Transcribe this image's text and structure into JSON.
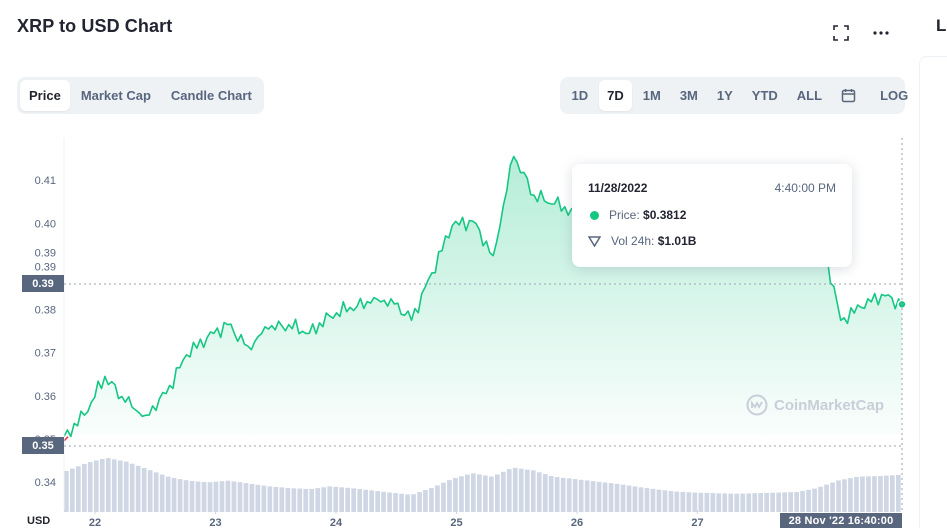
{
  "header": {
    "title": "XRP to USD Chart",
    "icons": [
      "fullscreen-icon",
      "more-icon"
    ],
    "side_letter": "L"
  },
  "chart_tabs": [
    {
      "label": "Price",
      "active": true
    },
    {
      "label": "Market Cap",
      "active": false
    },
    {
      "label": "Candle Chart",
      "active": false
    }
  ],
  "range_tabs": [
    {
      "label": "1D",
      "active": false
    },
    {
      "label": "7D",
      "active": true
    },
    {
      "label": "1M",
      "active": false
    },
    {
      "label": "3M",
      "active": false
    },
    {
      "label": "1Y",
      "active": false
    },
    {
      "label": "YTD",
      "active": false
    },
    {
      "label": "ALL",
      "active": false
    }
  ],
  "calendar_icon": "calendar-icon",
  "log_label": "LOG",
  "tooltip": {
    "date": "11/28/2022",
    "time": "4:40:00 PM",
    "price_label": "Price:",
    "price_value": "$0.3812",
    "volume_label": "Vol 24h:",
    "volume_value": "$1.01B"
  },
  "crosshair": {
    "price_tag_high": "0.39",
    "price_tag_low": "0.35",
    "time_tag": "28 Nov '22 16:40:00"
  },
  "currency_label": "USD",
  "watermark": "CoinMarketCap",
  "colors": {
    "up": "#16c784",
    "down": "#ea3943",
    "volume": "#cfd6e4",
    "text_secondary": "#58667e"
  },
  "chart_data": {
    "type": "area",
    "title": "XRP to USD Chart",
    "xlabel": "",
    "ylabel": "USD",
    "x_tick_labels": [
      "22",
      "23",
      "24",
      "25",
      "26",
      "27"
    ],
    "y_tick_labels": [
      "0.34",
      "0.35",
      "0.36",
      "0.37",
      "0.38",
      "0.39",
      "0.40",
      "0.41"
    ],
    "ylim": [
      0.3335,
      0.4198
    ],
    "grid": false,
    "series": [
      {
        "x": [
          "Nov 21 18:00",
          "Nov 22 00:00",
          "Nov 22 04:00",
          "Nov 22 08:00",
          "Nov 22 12:00",
          "Nov 22 16:00",
          "Nov 22 20:00",
          "Nov 23 00:00",
          "Nov 23 04:00",
          "Nov 23 08:00",
          "Nov 23 12:00",
          "Nov 23 16:00",
          "Nov 23 20:00",
          "Nov 24 00:00",
          "Nov 24 04:00",
          "Nov 24 08:00",
          "Nov 24 12:00",
          "Nov 24 16:00",
          "Nov 24 20:00",
          "Nov 25 00:00",
          "Nov 25 04:00",
          "Nov 25 08:00",
          "Nov 25 12:00",
          "Nov 25 16:00",
          "Nov 25 20:00",
          "Nov 26 00:00",
          "Nov 26 04:00",
          "Nov 26 08:00",
          "Nov 26 12:00",
          "Nov 26 16:00",
          "Nov 26 20:00",
          "Nov 27 00:00",
          "Nov 27 04:00",
          "Nov 27 08:00",
          "Nov 27 12:00",
          "Nov 27 16:00",
          "Nov 27 20:00",
          "Nov 28 00:00",
          "Nov 28 04:00",
          "Nov 28 08:00",
          "Nov 28 12:00",
          "Nov 28 16:40"
        ],
        "values": [
          0.3505,
          0.3555,
          0.3645,
          0.3585,
          0.3555,
          0.3605,
          0.3695,
          0.3735,
          0.3765,
          0.3715,
          0.3755,
          0.3765,
          0.3745,
          0.3785,
          0.3805,
          0.3815,
          0.3825,
          0.3775,
          0.3885,
          0.3995,
          0.4005,
          0.3925,
          0.4155,
          0.4065,
          0.4045,
          0.4025,
          0.4015,
          0.3985,
          0.4005,
          0.4025,
          0.3985,
          0.4025,
          0.3945,
          0.4045,
          0.4055,
          0.4035,
          0.4005,
          0.3985,
          0.3775,
          0.3805,
          0.3835,
          0.3812
        ]
      }
    ],
    "volume_relative": [
      0.72,
      0.86,
      0.95,
      0.88,
      0.75,
      0.62,
      0.55,
      0.52,
      0.55,
      0.5,
      0.45,
      0.42,
      0.4,
      0.45,
      0.42,
      0.38,
      0.34,
      0.3,
      0.42,
      0.58,
      0.68,
      0.62,
      0.78,
      0.73,
      0.62,
      0.58,
      0.54,
      0.5,
      0.45,
      0.4,
      0.36,
      0.34,
      0.33,
      0.32,
      0.33,
      0.34,
      0.35,
      0.42,
      0.55,
      0.62,
      0.63,
      0.65
    ]
  }
}
